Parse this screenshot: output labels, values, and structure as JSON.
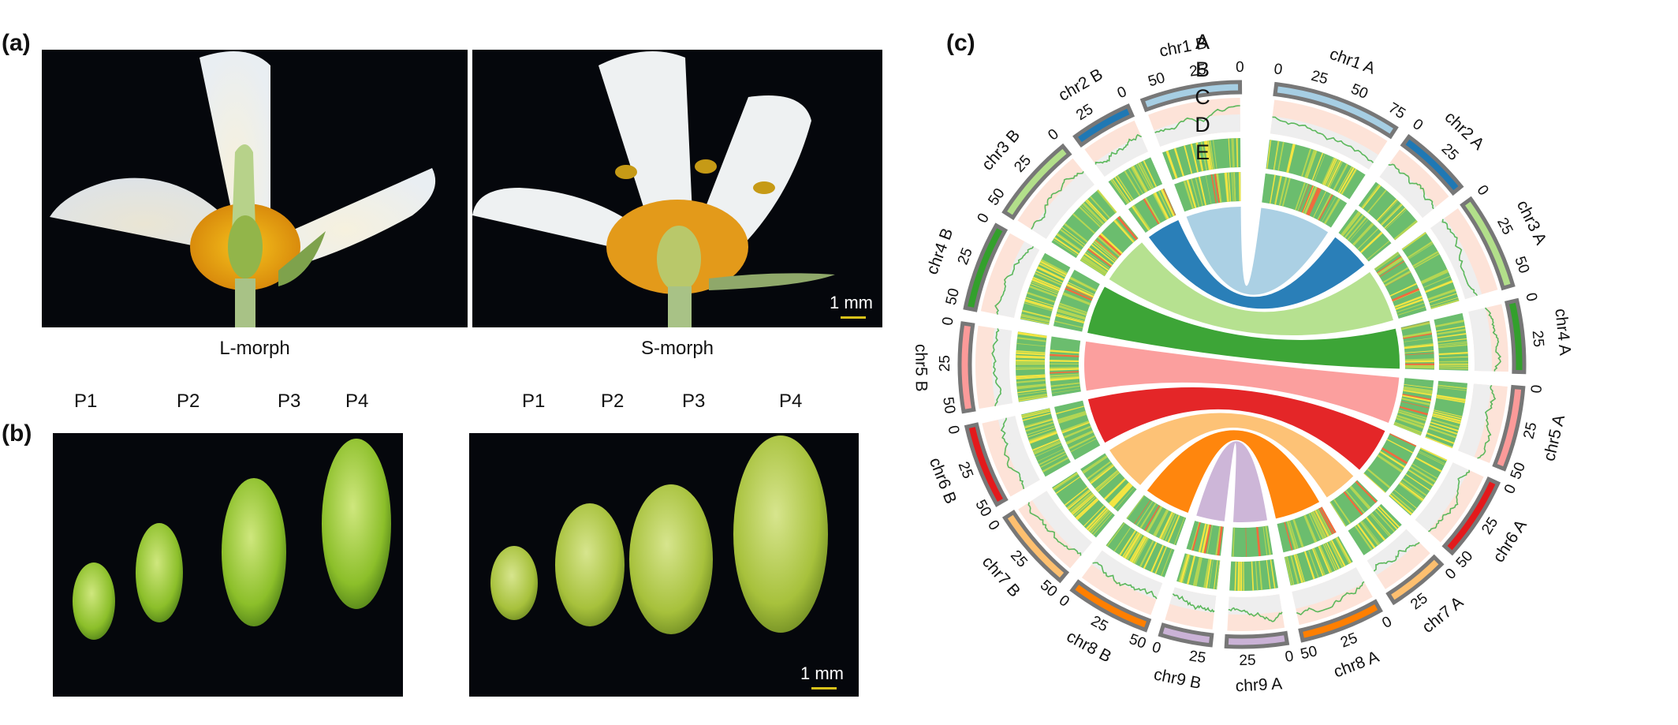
{
  "panels": {
    "a": {
      "label": "(a)",
      "left_caption": "L-morph",
      "right_caption": "S-morph",
      "scale_text": "1 mm"
    },
    "b": {
      "label": "(b)",
      "stages_left": [
        "P1",
        "P2",
        "P3",
        "P4"
      ],
      "stages_right": [
        "P1",
        "P2",
        "P3",
        "P4"
      ],
      "scale_text": "1 mm"
    },
    "c": {
      "label": "(c)",
      "track_letters": [
        "A",
        "B",
        "C",
        "D",
        "E"
      ]
    }
  },
  "colors": {
    "chr1": "#a6cee3",
    "chr2": "#1f78b4",
    "chr3": "#b2df8a",
    "chr4": "#33a02c",
    "chr5": "#fb9a99",
    "chr6": "#e31a1c",
    "chr7": "#fdbf6f",
    "chr8": "#ff7f00",
    "chr9": "#cab2d6",
    "ideogram_border": "#777777",
    "trackB_bg": "#fde3d8",
    "trackB_inner": "#eeeeee",
    "line": "#5cb85c",
    "heat_low": "#6bbd6e",
    "heat_mid": "#f4e542",
    "heat_high": "#f26a3d"
  },
  "chart_data": {
    "type": "circos",
    "title": "",
    "track_labels": [
      "A",
      "B",
      "C",
      "D",
      "E"
    ],
    "chromosomes": [
      {
        "name": "chr1 A",
        "color_key": "chr1",
        "length": 80,
        "ticks": [
          0,
          25,
          50,
          75
        ]
      },
      {
        "name": "chr2 A",
        "color_key": "chr2",
        "length": 45,
        "ticks": [
          0,
          25
        ]
      },
      {
        "name": "chr3 A",
        "color_key": "chr3",
        "length": 60,
        "ticks": [
          0,
          25,
          50
        ]
      },
      {
        "name": "chr4 A",
        "color_key": "chr4",
        "length": 45,
        "ticks": [
          0,
          25
        ]
      },
      {
        "name": "chr5 A",
        "color_key": "chr5",
        "length": 52,
        "ticks": [
          0,
          25,
          50
        ]
      },
      {
        "name": "chr6 A",
        "color_key": "chr6",
        "length": 52,
        "ticks": [
          0,
          25,
          50
        ]
      },
      {
        "name": "chr7 A",
        "color_key": "chr7",
        "length": 38,
        "ticks": [
          0,
          25
        ]
      },
      {
        "name": "chr8 A",
        "color_key": "chr8",
        "length": 52,
        "ticks": [
          0,
          25,
          50
        ]
      },
      {
        "name": "chr9 A",
        "color_key": "chr9",
        "length": 38,
        "ticks": [
          0,
          25
        ]
      },
      {
        "name": "chr9 B",
        "color_key": "chr9",
        "length": 32,
        "ticks": [
          0,
          25
        ]
      },
      {
        "name": "chr8 B",
        "color_key": "chr8",
        "length": 52,
        "ticks": [
          0,
          25,
          50
        ]
      },
      {
        "name": "chr7 B",
        "color_key": "chr7",
        "length": 52,
        "ticks": [
          0,
          25,
          50
        ]
      },
      {
        "name": "chr6 B",
        "color_key": "chr6",
        "length": 52,
        "ticks": [
          0,
          25,
          50
        ]
      },
      {
        "name": "chr5 B",
        "color_key": "chr5",
        "length": 55,
        "ticks": [
          0,
          25,
          50
        ]
      },
      {
        "name": "chr4 B",
        "color_key": "chr4",
        "length": 55,
        "ticks": [
          0,
          25,
          50
        ]
      },
      {
        "name": "chr3 B",
        "color_key": "chr3",
        "length": 55,
        "ticks": [
          0,
          25,
          50
        ]
      },
      {
        "name": "chr2 B",
        "color_key": "chr2",
        "length": 38,
        "ticks": [
          0,
          25
        ]
      },
      {
        "name": "chr1 B",
        "color_key": "chr1",
        "length": 62,
        "ticks": [
          0,
          25,
          50
        ]
      }
    ],
    "links": [
      {
        "from": "chr1 A",
        "to": "chr1 B",
        "color_key": "chr1"
      },
      {
        "from": "chr2 A",
        "to": "chr2 B",
        "color_key": "chr2"
      },
      {
        "from": "chr3 A",
        "to": "chr3 B",
        "color_key": "chr3"
      },
      {
        "from": "chr4 A",
        "to": "chr4 B",
        "color_key": "chr4"
      },
      {
        "from": "chr5 A",
        "to": "chr5 B",
        "color_key": "chr5"
      },
      {
        "from": "chr6 A",
        "to": "chr6 B",
        "color_key": "chr6"
      },
      {
        "from": "chr7 A",
        "to": "chr7 B",
        "color_key": "chr7"
      },
      {
        "from": "chr8 A",
        "to": "chr8 B",
        "color_key": "chr8"
      },
      {
        "from": "chr9 A",
        "to": "chr9 B",
        "color_key": "chr9"
      }
    ]
  }
}
